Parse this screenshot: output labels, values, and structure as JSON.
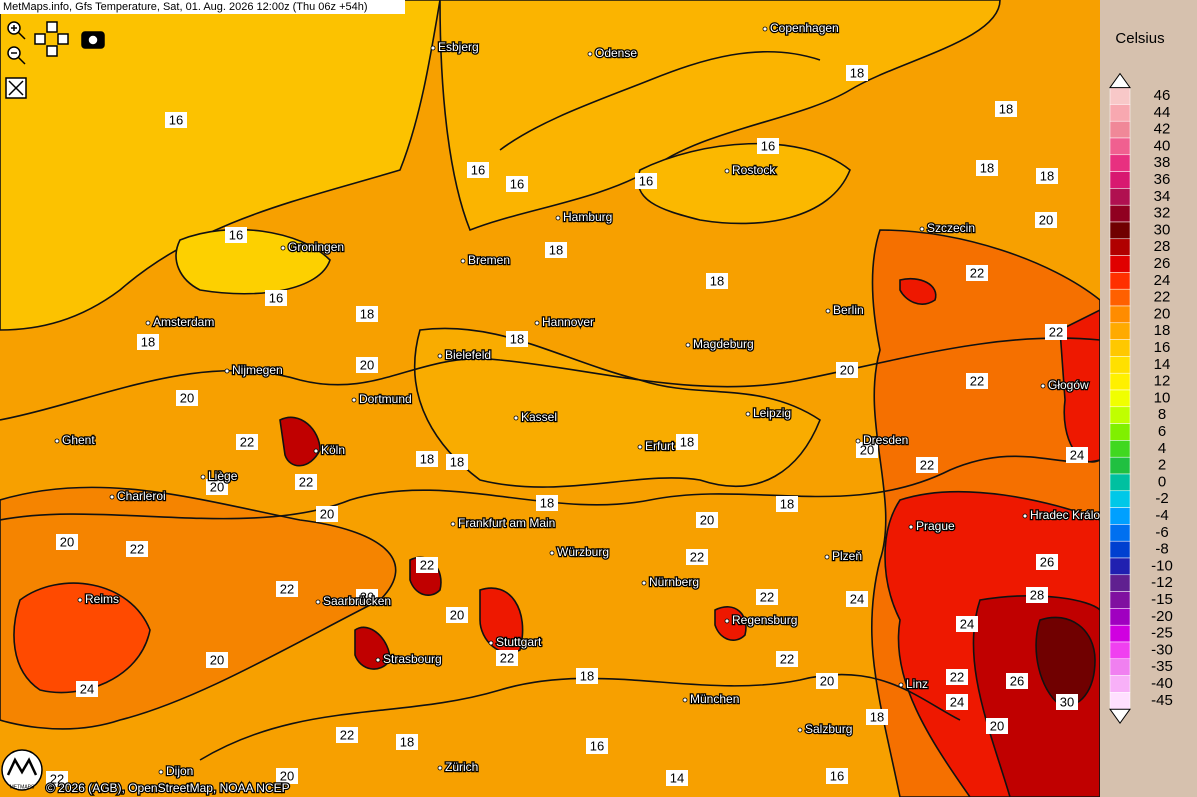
{
  "header": {
    "title": "MetMaps.info, Gfs Temperature, Sat, 01. Aug. 2026 12:00z (Thu 06z +54h)"
  },
  "footer": {
    "credit": "© 2026 (AGB), OpenStreetMap, NOAA NCEP",
    "logo": "METMAPS"
  },
  "legend": {
    "unit": "Celsius",
    "levels": [
      {
        "label": "46",
        "color": "#f8c8c8"
      },
      {
        "label": "44",
        "color": "#f8a8b0"
      },
      {
        "label": "42",
        "color": "#f08898"
      },
      {
        "label": "40",
        "color": "#f06090"
      },
      {
        "label": "38",
        "color": "#e83080"
      },
      {
        "label": "36",
        "color": "#d81870"
      },
      {
        "label": "34",
        "color": "#b01050"
      },
      {
        "label": "32",
        "color": "#900020"
      },
      {
        "label": "30",
        "color": "#700000"
      },
      {
        "label": "28",
        "color": "#b00000"
      },
      {
        "label": "26",
        "color": "#e00000"
      },
      {
        "label": "24",
        "color": "#ff3000"
      },
      {
        "label": "22",
        "color": "#ff6000"
      },
      {
        "label": "20",
        "color": "#ff8c00"
      },
      {
        "label": "18",
        "color": "#ffaa00"
      },
      {
        "label": "16",
        "color": "#ffc800"
      },
      {
        "label": "14",
        "color": "#ffe000"
      },
      {
        "label": "12",
        "color": "#fff000"
      },
      {
        "label": "10",
        "color": "#f0ff00"
      },
      {
        "label": "8",
        "color": "#c0ff00"
      },
      {
        "label": "6",
        "color": "#80f000"
      },
      {
        "label": "4",
        "color": "#40d820"
      },
      {
        "label": "2",
        "color": "#20c040"
      },
      {
        "label": "0",
        "color": "#00c0a0"
      },
      {
        "label": "-2",
        "color": "#00c8e8"
      },
      {
        "label": "-4",
        "color": "#00a0ff"
      },
      {
        "label": "-6",
        "color": "#0070f0"
      },
      {
        "label": "-8",
        "color": "#0040d0"
      },
      {
        "label": "-10",
        "color": "#2020b0"
      },
      {
        "label": "-12",
        "color": "#602090"
      },
      {
        "label": "-15",
        "color": "#8010a0"
      },
      {
        "label": "-20",
        "color": "#a000c0"
      },
      {
        "label": "-25",
        "color": "#d000e0"
      },
      {
        "label": "-30",
        "color": "#f040f0"
      },
      {
        "label": "-35",
        "color": "#f080f0"
      },
      {
        "label": "-40",
        "color": "#f8b0f8"
      },
      {
        "label": "-45",
        "color": "#ffe0ff"
      }
    ]
  },
  "cities": [
    "Esbjerg",
    "Odense",
    "Copenhagen",
    "Rostock",
    "Hamburg",
    "Szczecin",
    "Groningen",
    "Bremen",
    "Berlin",
    "Amsterdam",
    "Hannover",
    "Magdeburg",
    "Bielefeld",
    "Nijmegen",
    "Głogów",
    "Dortmund",
    "Leipzig",
    "Kassel",
    "Ghent",
    "Dresden",
    "Erfurt",
    "Köln",
    "Liège",
    "Charleroi",
    "Hradec Králové",
    "Frankfurt am Main",
    "Prague",
    "Würzburg",
    "Plzeň",
    "Nürnberg",
    "Reims",
    "Saarbrücken",
    "Regensburg",
    "Stuttgart",
    "Strasbourg",
    "Linz",
    "München",
    "Salzburg",
    "Dijon",
    "Zürich"
  ],
  "contour_labels": [
    "16",
    "16",
    "16",
    "16",
    "16",
    "16",
    "16",
    "18",
    "18",
    "18",
    "18",
    "18",
    "18",
    "18",
    "18",
    "18",
    "20",
    "22",
    "22",
    "20",
    "22",
    "20",
    "20",
    "22",
    "18",
    "18",
    "18",
    "20",
    "22",
    "24",
    "20",
    "22",
    "20",
    "18",
    "18",
    "20",
    "20",
    "22",
    "22",
    "22",
    "22",
    "20",
    "20",
    "22",
    "24",
    "26",
    "28",
    "24",
    "22",
    "22",
    "20",
    "18",
    "20",
    "22",
    "26",
    "24",
    "24",
    "30",
    "18",
    "20",
    "22",
    "18",
    "16",
    "14",
    "16",
    "20",
    "22"
  ]
}
